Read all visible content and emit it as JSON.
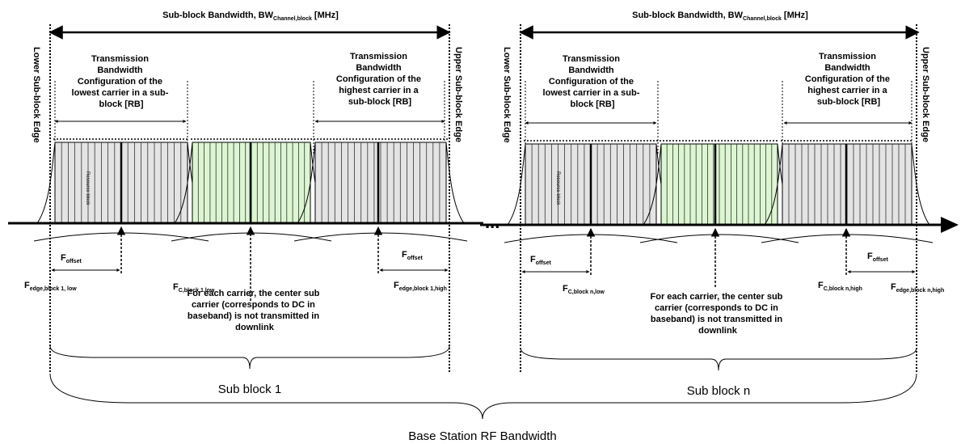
{
  "top_label": {
    "main": "Sub-block Bandwidth,  BW",
    "sub": "Channel,block",
    "tail": " [MHz]"
  },
  "lower_edge_label": "Lower Sub-block Edge",
  "upper_edge_label": "Upper Sub-block Edge",
  "tx_lowest": [
    "Transmission",
    "Bandwidth",
    "Configuration of the",
    "lowest carrier in a sub-",
    "block  [RB]"
  ],
  "tx_highest": [
    "Transmission",
    "Bandwidth",
    "Configuration of the",
    "highest carrier in a",
    "sub-block [RB]"
  ],
  "resource_block_label": "Resource block",
  "offset_label": {
    "main": "F",
    "sub": "offset"
  },
  "dc_note": [
    "For each carrier, the center sub",
    "carrier (corresponds to DC in",
    "baseband) is not transmitted in",
    "downlink"
  ],
  "ellipsis": "...",
  "block1": {
    "edge_low": {
      "main": "F",
      "sub": "edge,block 1, low"
    },
    "fc_low": {
      "main": "F",
      "sub": "C,block 1,low"
    },
    "edge_high": {
      "main": "F",
      "sub": "edge,block 1,high"
    },
    "name": "Sub block 1"
  },
  "blockn": {
    "fc_low": {
      "main": "F",
      "sub": "C,block n,low"
    },
    "fc_high": {
      "main": "F",
      "sub": "C,block n,high"
    },
    "edge_high": {
      "main": "F",
      "sub": "edge,block n,high"
    },
    "name": "Sub block n"
  },
  "bottom_label": "Base Station RF Bandwidth",
  "colors": {
    "grey_carrier": "#e4e4e4",
    "green_carrier": "#dcf6d2",
    "line": "#000000"
  }
}
